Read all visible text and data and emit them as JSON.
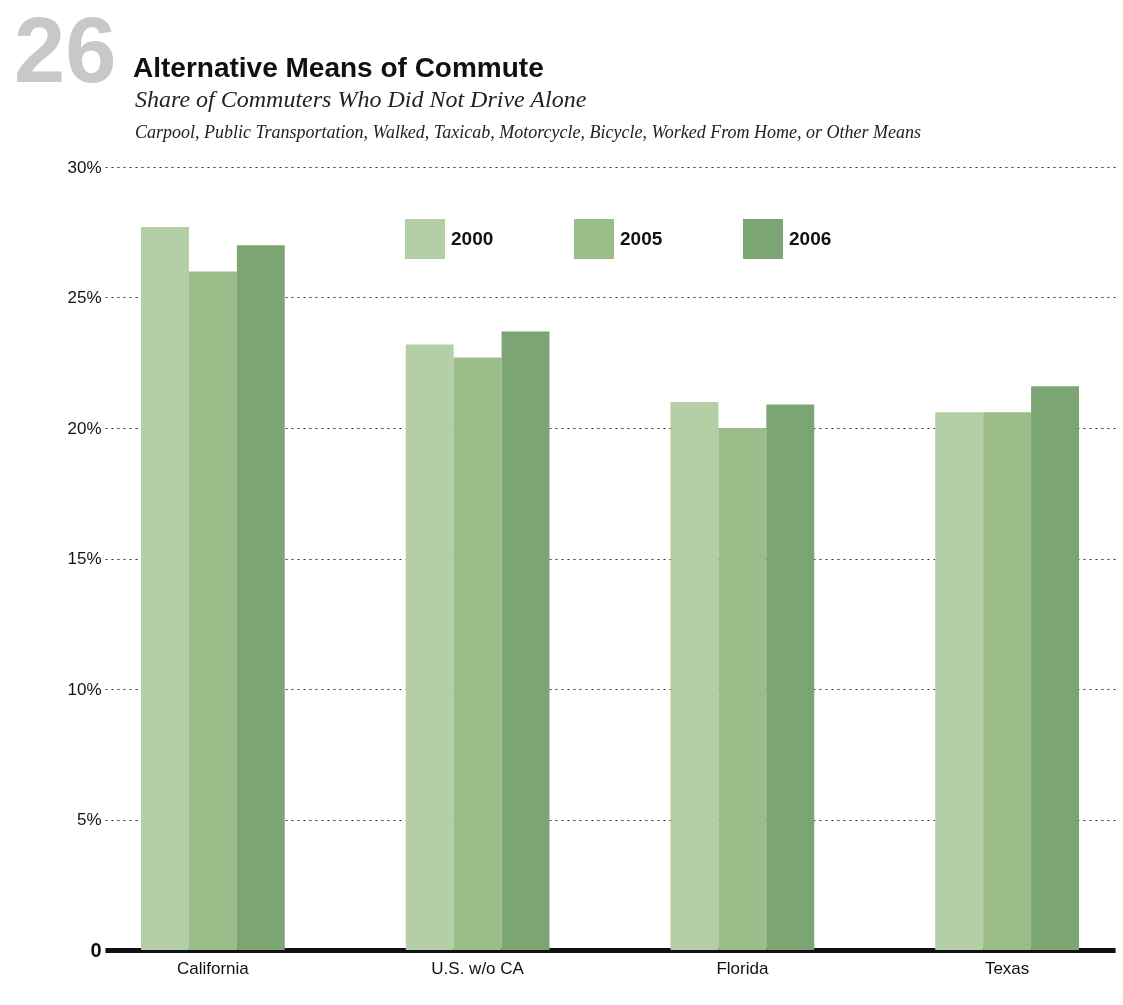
{
  "chart_data": {
    "type": "bar",
    "title": "Alternative Means of Commute",
    "subtitle": "Share of Commuters Who Did Not Drive Alone",
    "annotations": [
      "26",
      "Carpool, Public Transportation, Walked, Taxicab, Motorcycle, Bicycle, Worked From Home, or Other Means"
    ],
    "categories": [
      "California",
      "U.S. w/o CA",
      "Florida",
      "Texas"
    ],
    "series": [
      {
        "name": "2000",
        "color": "#b4cea5",
        "values": [
          27.7,
          23.2,
          21.0,
          20.6
        ]
      },
      {
        "name": "2005",
        "color": "#9abd89",
        "values": [
          26.0,
          22.7,
          20.0,
          20.6
        ]
      },
      {
        "name": "2006",
        "color": "#7ba573",
        "values": [
          27.0,
          23.7,
          20.9,
          21.6
        ]
      }
    ],
    "ylim": [
      0,
      30
    ],
    "yticks": [
      {
        "value": 0,
        "label": "0"
      },
      {
        "value": 5,
        "label": "5%"
      },
      {
        "value": 10,
        "label": "10%"
      },
      {
        "value": 15,
        "label": "15%"
      },
      {
        "value": 20,
        "label": "20%"
      },
      {
        "value": 25,
        "label": "25%"
      },
      {
        "value": 30,
        "label": "30%"
      }
    ],
    "grid": "y",
    "legend": "top"
  }
}
